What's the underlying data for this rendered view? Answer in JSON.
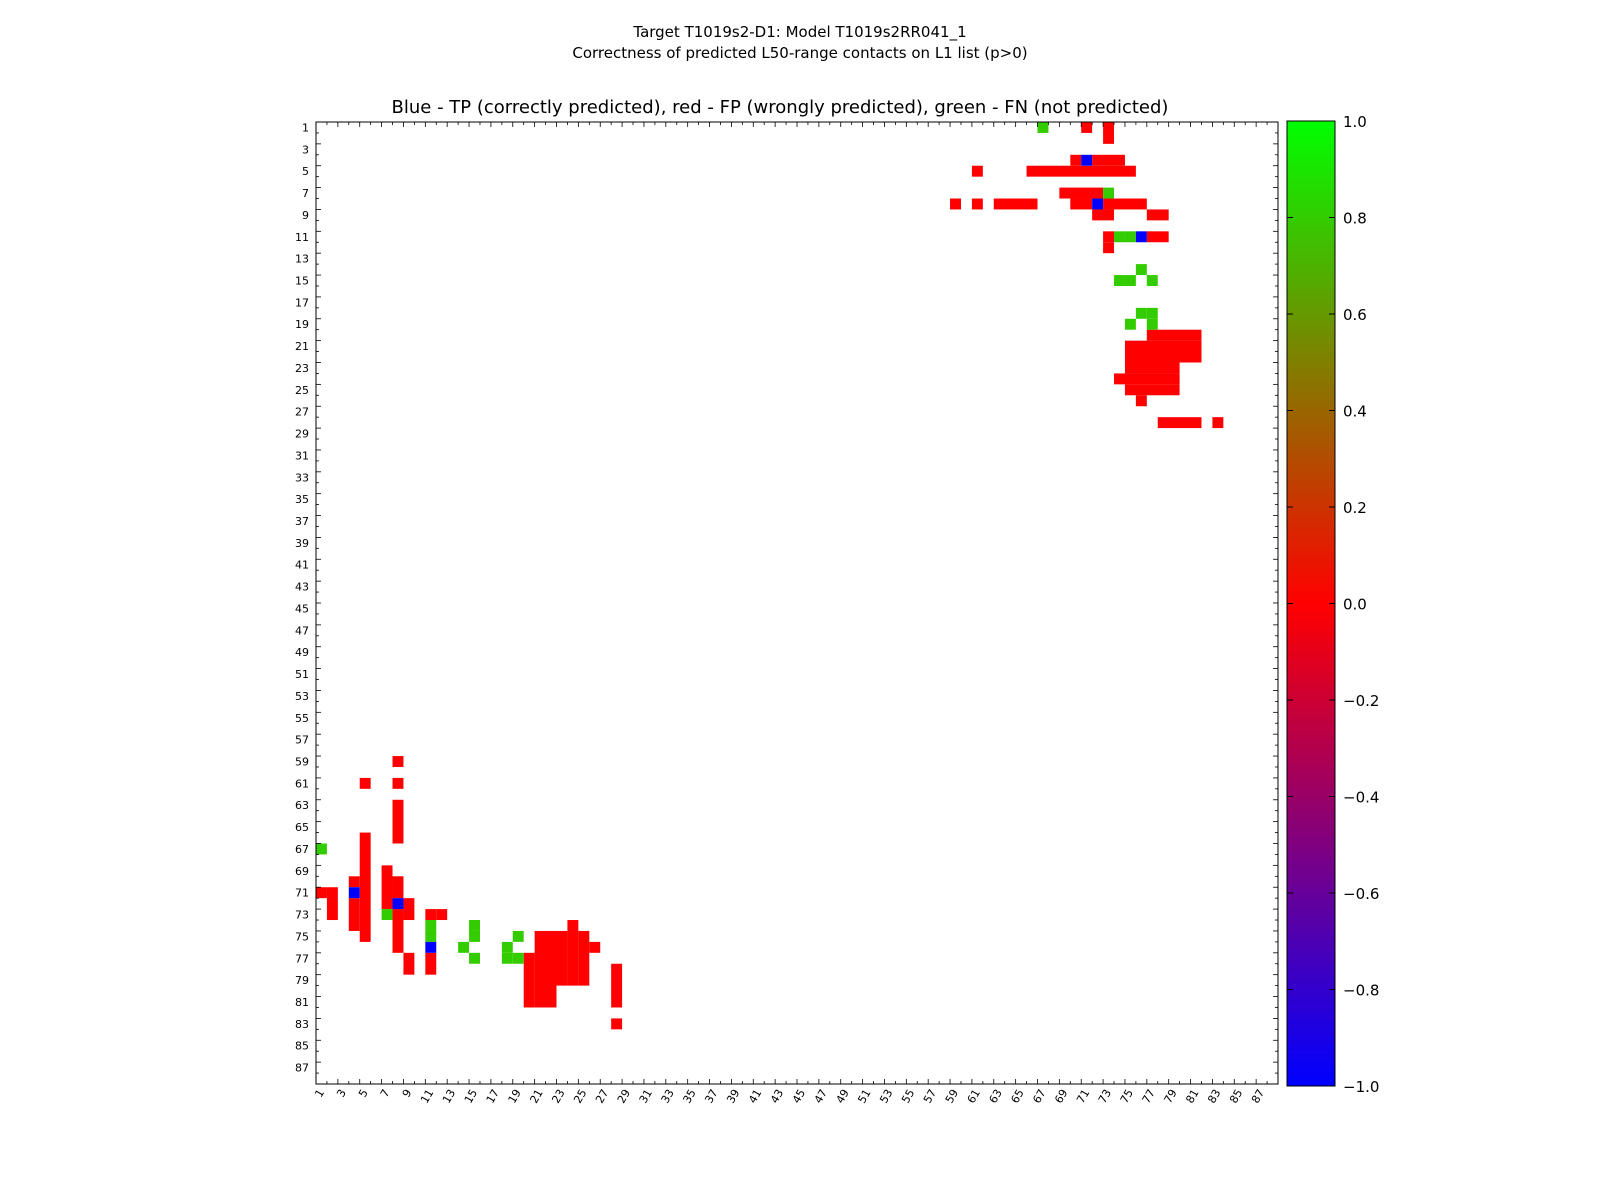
{
  "chart_data": {
    "type": "heatmap",
    "suptitle_line1": "Target T1019s2-D1: Model T1019s2RR041_1",
    "suptitle_line2": "Correctness of predicted L50-range contacts on L1 list (p>0)",
    "title": "Blue - TP (correctly predicted), red - FP (wrongly predicted), green - FN (not predicted)",
    "n_residues": 88,
    "x_range": [
      1,
      88
    ],
    "y_range": [
      1,
      88
    ],
    "x_tick_labels": [
      "1",
      "3",
      "5",
      "7",
      "9",
      "11",
      "13",
      "15",
      "17",
      "19",
      "21",
      "23",
      "25",
      "27",
      "29",
      "31",
      "33",
      "35",
      "37",
      "39",
      "41",
      "43",
      "45",
      "47",
      "49",
      "51",
      "53",
      "55",
      "57",
      "59",
      "61",
      "63",
      "65",
      "67",
      "69",
      "71",
      "73",
      "75",
      "77",
      "79",
      "81",
      "83",
      "85",
      "87"
    ],
    "y_tick_labels": [
      "1",
      "3",
      "5",
      "7",
      "9",
      "11",
      "13",
      "15",
      "17",
      "19",
      "21",
      "23",
      "25",
      "27",
      "29",
      "31",
      "33",
      "35",
      "37",
      "39",
      "41",
      "43",
      "45",
      "47",
      "49",
      "51",
      "53",
      "55",
      "57",
      "59",
      "61",
      "63",
      "65",
      "67",
      "69",
      "71",
      "73",
      "75",
      "77",
      "79",
      "81",
      "83",
      "85",
      "87"
    ],
    "colorbar": {
      "min": -1.0,
      "max": 1.0,
      "ticks": [
        "1.0",
        "0.8",
        "0.6",
        "0.4",
        "0.2",
        "0.0",
        "−0.2",
        "−0.4",
        "−0.6",
        "−0.8",
        "−1.0"
      ],
      "colors": {
        "low": "#0000ff",
        "mid": "#ff0000",
        "high": "#00ff00"
      }
    },
    "cell_colors": {
      "TP": "#0000ff",
      "FP": "#ff0000",
      "FN": "#33cc00"
    },
    "series": [
      {
        "name": "TP",
        "value": -1,
        "cells": [
          [
            4,
            71
          ],
          [
            8,
            72
          ],
          [
            11,
            76
          ],
          [
            71,
            4
          ],
          [
            72,
            8
          ],
          [
            76,
            11
          ]
        ]
      },
      {
        "name": "FN",
        "value": 1,
        "cells": [
          [
            1,
            67
          ],
          [
            7,
            73
          ],
          [
            11,
            74
          ],
          [
            11,
            75
          ],
          [
            14,
            76
          ],
          [
            15,
            74
          ],
          [
            15,
            75
          ],
          [
            15,
            77
          ],
          [
            18,
            76
          ],
          [
            18,
            77
          ],
          [
            19,
            75
          ],
          [
            19,
            77
          ],
          [
            67,
            1
          ],
          [
            73,
            7
          ],
          [
            74,
            11
          ],
          [
            75,
            11
          ],
          [
            76,
            14
          ],
          [
            74,
            15
          ],
          [
            75,
            15
          ],
          [
            77,
            15
          ],
          [
            76,
            18
          ],
          [
            77,
            18
          ],
          [
            75,
            19
          ],
          [
            77,
            19
          ]
        ]
      },
      {
        "name": "FP",
        "value": 0,
        "rects": [
          [
            1,
            1,
            71,
            71
          ],
          [
            2,
            2,
            71,
            73
          ],
          [
            4,
            4,
            70,
            70
          ],
          [
            4,
            4,
            72,
            74
          ],
          [
            5,
            5,
            66,
            75
          ],
          [
            7,
            7,
            69,
            72
          ],
          [
            8,
            8,
            59,
            59
          ],
          [
            8,
            8,
            61,
            61
          ],
          [
            8,
            8,
            63,
            66
          ],
          [
            8,
            8,
            70,
            71
          ],
          [
            8,
            8,
            73,
            76
          ],
          [
            9,
            9,
            72,
            73
          ],
          [
            9,
            9,
            77,
            78
          ],
          [
            11,
            11,
            73,
            73
          ],
          [
            11,
            11,
            77,
            78
          ],
          [
            12,
            12,
            73,
            73
          ],
          [
            5,
            5,
            61,
            61
          ],
          [
            20,
            20,
            77,
            81
          ],
          [
            21,
            22,
            75,
            81
          ],
          [
            23,
            23,
            75,
            79
          ],
          [
            24,
            24,
            74,
            79
          ],
          [
            25,
            25,
            75,
            79
          ],
          [
            26,
            26,
            76,
            76
          ],
          [
            28,
            28,
            78,
            81
          ],
          [
            28,
            28,
            83,
            83
          ],
          [
            71,
            71,
            1,
            1
          ],
          [
            73,
            73,
            1,
            2
          ],
          [
            70,
            70,
            4,
            4
          ],
          [
            72,
            74,
            4,
            4
          ],
          [
            66,
            75,
            5,
            5
          ],
          [
            69,
            72,
            7,
            7
          ],
          [
            59,
            59,
            8,
            8
          ],
          [
            61,
            61,
            8,
            8
          ],
          [
            63,
            66,
            8,
            8
          ],
          [
            70,
            71,
            8,
            8
          ],
          [
            73,
            76,
            8,
            8
          ],
          [
            72,
            73,
            9,
            9
          ],
          [
            77,
            78,
            9,
            9
          ],
          [
            73,
            73,
            11,
            11
          ],
          [
            77,
            78,
            11,
            11
          ],
          [
            73,
            73,
            12,
            12
          ],
          [
            61,
            61,
            5,
            5
          ],
          [
            77,
            81,
            20,
            20
          ],
          [
            75,
            81,
            21,
            22
          ],
          [
            75,
            79,
            23,
            23
          ],
          [
            74,
            79,
            24,
            24
          ],
          [
            75,
            79,
            25,
            25
          ],
          [
            76,
            76,
            26,
            26
          ],
          [
            78,
            81,
            28,
            28
          ],
          [
            83,
            83,
            28,
            28
          ]
        ]
      }
    ]
  }
}
